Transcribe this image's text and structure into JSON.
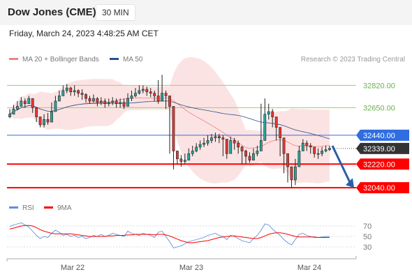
{
  "header": {
    "title": "Dow Jones (CME)",
    "timeframe": "30 MIN"
  },
  "timestamp": "Friday, March 24, 2023 4:48:25 AM CET",
  "legend": {
    "bb_label": "MA 20 + Bollinger Bands",
    "ma50_label": "MA 50"
  },
  "copyright": "Research © 2023 Trading Central",
  "colors": {
    "bollinger": "#f08080",
    "ma50": "#2a4f8f",
    "support": "#ff0000",
    "pivot": "#2f6de0",
    "resistance": "#9ccf6a",
    "last_price": "#333333",
    "rsi": "#5b8fe0",
    "rsi_ma": "#ff0000",
    "arrow": "#2a5ea8"
  },
  "chart_data": [
    {
      "type": "candlestick",
      "ylim": [
        31940,
        32960
      ],
      "x_ticks": [
        "Mar 22",
        "Mar 23",
        "Mar 24"
      ],
      "levels": [
        {
          "value": 32820,
          "label": "32820.00",
          "kind": "resistance"
        },
        {
          "value": 32650,
          "label": "32650.00",
          "kind": "resistance"
        },
        {
          "value": 32440,
          "label": "32440.00",
          "kind": "pivot"
        },
        {
          "value": 32339,
          "label": "32339.00",
          "kind": "last"
        },
        {
          "value": 32220,
          "label": "32220.00",
          "kind": "support"
        },
        {
          "value": 32040,
          "label": "32040.00",
          "kind": "support"
        }
      ],
      "close": [
        32600,
        32640,
        32660,
        32700,
        32680,
        32720,
        32650,
        32580,
        32520,
        32560,
        32540,
        32620,
        32700,
        32740,
        32780,
        32800,
        32770,
        32780,
        32760,
        32750,
        32720,
        32700,
        32720,
        32690,
        32700,
        32680,
        32690,
        32700,
        32680,
        32690,
        32660,
        32720,
        32740,
        32760,
        32780,
        32790,
        32770,
        32760,
        32740,
        32700,
        32760,
        32740,
        32660,
        32320,
        32260,
        32240,
        32250,
        32300,
        32320,
        32350,
        32370,
        32380,
        32400,
        32420,
        32430,
        32420,
        32410,
        32300,
        32400,
        32380,
        32350,
        32320,
        32280,
        32250,
        32300,
        32320,
        32400,
        32600,
        32620,
        32580,
        32500,
        32420,
        32300,
        32200,
        32100,
        32200,
        32320,
        32380,
        32360,
        32350,
        32300,
        32300,
        32320,
        32330,
        32339
      ],
      "high": [
        32640,
        32670,
        32700,
        32730,
        32720,
        32740,
        32700,
        32640,
        32580,
        32600,
        32610,
        32690,
        32740,
        32780,
        32820,
        32830,
        32810,
        32820,
        32790,
        32790,
        32760,
        32740,
        32750,
        32730,
        32730,
        32720,
        32720,
        32730,
        32720,
        32720,
        32720,
        32760,
        32780,
        32800,
        32820,
        32820,
        32810,
        32800,
        32780,
        32860,
        32900,
        32780,
        32700,
        32400,
        32320,
        32290,
        32300,
        32340,
        32360,
        32380,
        32400,
        32420,
        32440,
        32450,
        32460,
        32450,
        32440,
        32400,
        32430,
        32420,
        32400,
        32360,
        32330,
        32310,
        32340,
        32360,
        32680,
        32720,
        32680,
        32640,
        32560,
        32480,
        32400,
        32280,
        32200,
        32260,
        32360,
        32410,
        32400,
        32380,
        32350,
        32340,
        32350,
        32360,
        32360
      ],
      "low": [
        32570,
        32600,
        32630,
        32660,
        32650,
        32680,
        32610,
        32540,
        32500,
        32500,
        32520,
        32560,
        32650,
        32700,
        32740,
        32760,
        32740,
        32740,
        32730,
        32710,
        32690,
        32680,
        32690,
        32660,
        32670,
        32650,
        32660,
        32670,
        32650,
        32650,
        32640,
        32670,
        32700,
        32730,
        32750,
        32760,
        32740,
        32730,
        32700,
        32680,
        32700,
        32640,
        32300,
        32180,
        32220,
        32200,
        32220,
        32260,
        32280,
        32310,
        32330,
        32350,
        32360,
        32380,
        32390,
        32380,
        32280,
        32260,
        32350,
        32330,
        32300,
        32220,
        32220,
        32230,
        32260,
        32280,
        32320,
        32560,
        32560,
        32500,
        32400,
        32280,
        32150,
        32080,
        32040,
        32060,
        32260,
        32340,
        32320,
        32300,
        32270,
        32260,
        32280,
        32310,
        32320
      ]
    },
    {
      "type": "line",
      "name": "RSI",
      "ticks": [
        70,
        50,
        30
      ],
      "ylim": [
        14,
        86
      ],
      "legend": [
        "RSI",
        "9MA"
      ],
      "series": [
        {
          "name": "RSI",
          "values": [
            69,
            72,
            74,
            76,
            72,
            68,
            60,
            52,
            46,
            50,
            48,
            56,
            62,
            58,
            52,
            54,
            50,
            52,
            48,
            50,
            46,
            48,
            52,
            50,
            54,
            50,
            52,
            56,
            54,
            52,
            50,
            60,
            56,
            54,
            52,
            56,
            54,
            52,
            48,
            58,
            60,
            50,
            40,
            28,
            30,
            32,
            36,
            40,
            42,
            44,
            46,
            48,
            52,
            54,
            56,
            52,
            50,
            44,
            52,
            50,
            46,
            42,
            40,
            38,
            46,
            52,
            62,
            74,
            72,
            64,
            58,
            52,
            44,
            38,
            34,
            44,
            54,
            56,
            52,
            50,
            48,
            48,
            49,
            50,
            50
          ]
        },
        {
          "name": "9MA",
          "values": [
            64,
            66,
            68,
            70,
            71,
            71,
            70,
            67,
            63,
            60,
            58,
            56,
            55,
            55,
            55,
            55,
            55,
            54,
            53,
            52,
            51,
            50,
            50,
            50,
            50,
            50,
            51,
            51,
            52,
            52,
            52,
            53,
            53,
            54,
            54,
            54,
            54,
            54,
            53,
            54,
            54,
            53,
            51,
            48,
            45,
            42,
            40,
            38,
            38,
            39,
            40,
            41,
            42,
            44,
            46,
            48,
            49,
            50,
            51,
            51,
            50,
            49,
            48,
            47,
            46,
            46,
            48,
            51,
            54,
            56,
            57,
            57,
            56,
            54,
            52,
            50,
            49,
            49,
            49,
            49,
            49,
            48,
            48,
            48,
            48
          ]
        }
      ]
    }
  ]
}
